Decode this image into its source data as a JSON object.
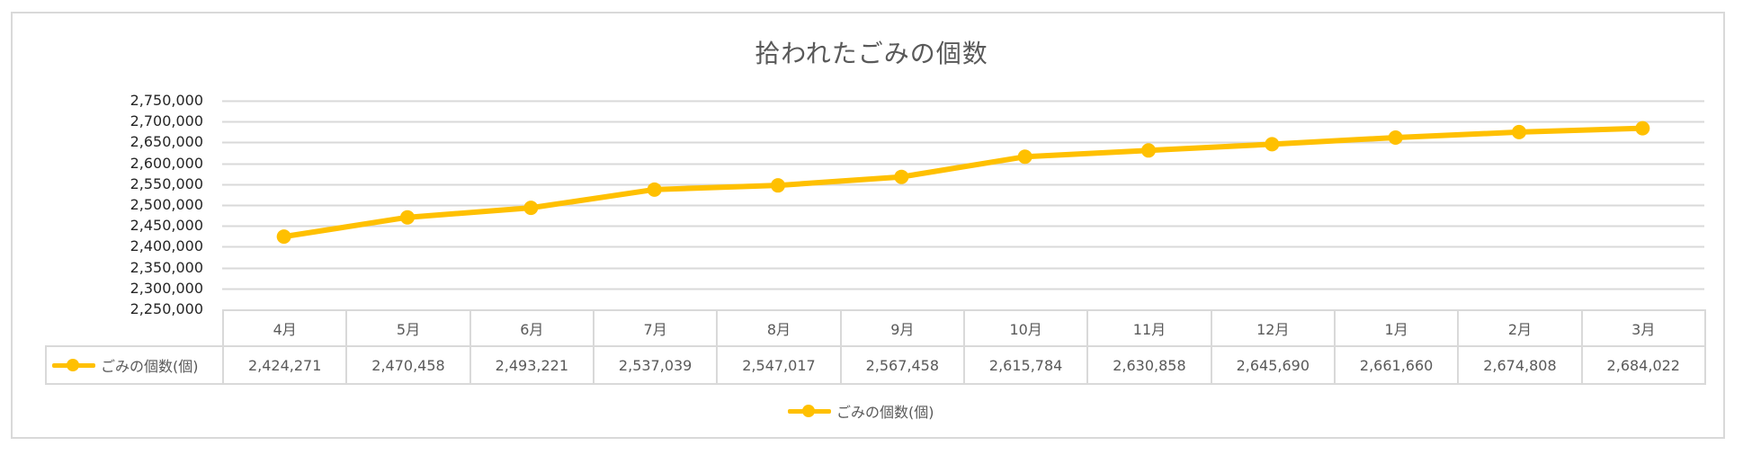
{
  "chart_data": {
    "type": "line",
    "title": "拾われたごみの個数",
    "xlabel": "",
    "ylabel": "",
    "categories": [
      "4月",
      "5月",
      "6月",
      "7月",
      "8月",
      "9月",
      "10月",
      "11月",
      "12月",
      "1月",
      "2月",
      "3月"
    ],
    "series": [
      {
        "name": "ごみの個数(個)",
        "color": "#FFC000",
        "values": [
          2424271,
          2470458,
          2493221,
          2537039,
          2547017,
          2567458,
          2615784,
          2630858,
          2645690,
          2661660,
          2674808,
          2684022
        ],
        "display_values": [
          "2,424,271",
          "2,470,458",
          "2,493,221",
          "2,537,039",
          "2,547,017",
          "2,567,458",
          "2,615,784",
          "2,630,858",
          "2,645,690",
          "2,661,660",
          "2,674,808",
          "2,684,022"
        ]
      }
    ],
    "ylim": [
      2250000,
      2750000
    ],
    "ytick_step": 50000,
    "yticks": [
      "2,750,000",
      "2,700,000",
      "2,650,000",
      "2,600,000",
      "2,550,000",
      "2,500,000",
      "2,450,000",
      "2,400,000",
      "2,350,000",
      "2,300,000",
      "2,250,000"
    ],
    "grid": true,
    "legend_position": "bottom",
    "data_table": true
  },
  "colors": {
    "series": "#FFC000",
    "grid": "#D9D9D9",
    "text": "#595959",
    "axis_text": "#262626"
  },
  "legend": {
    "label": "ごみの個数(個)"
  },
  "table": {
    "row_label": "ごみの個数(個)"
  }
}
